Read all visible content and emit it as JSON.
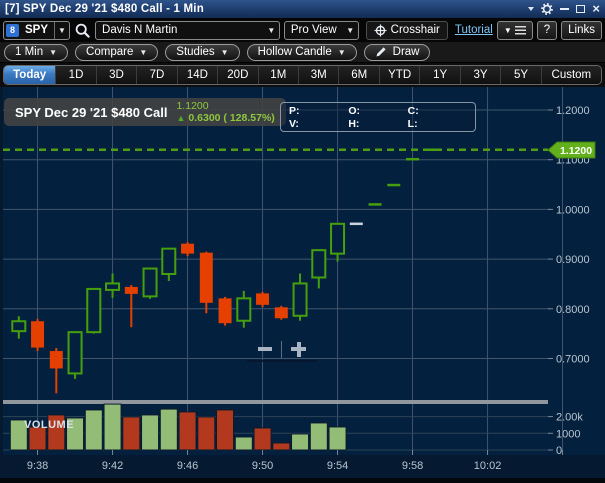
{
  "window": {
    "title": "[7] SPY Dec 29 '21 $480 Call - 1 Min"
  },
  "toolbar": {
    "symbol": "SPY",
    "link_group": "8",
    "account": "Davis N Martin",
    "view": "Pro View",
    "crosshair_label": "Crosshair",
    "tutorial_label": "Tutorial",
    "help_label": "?",
    "links_label": "Links"
  },
  "toolbar2": {
    "interval": "1 Min",
    "compare": "Compare",
    "studies": "Studies",
    "chart_style": "Hollow Candle",
    "draw": "Draw"
  },
  "range_tabs": [
    "Today",
    "1D",
    "3D",
    "7D",
    "14D",
    "20D",
    "1M",
    "3M",
    "6M",
    "YTD",
    "1Y",
    "3Y",
    "5Y",
    "Custom"
  ],
  "active_tab": "Today",
  "legend": {
    "symbol": "SPY Dec 29 '21 $480 Call",
    "last": "1.1200",
    "change": "0.6300 ( 128.57%)",
    "direction": "up"
  },
  "info_box": [
    "P:",
    "O:",
    "C:",
    "V:",
    "H:",
    "L:"
  ],
  "chart_data": {
    "type": "candlestick",
    "title": "SPY Dec 29 '21 $480 Call - 1 Min",
    "interval": "1 Min",
    "last_price": 1.12,
    "last_price_label": "1.1200",
    "volume_pane_label": "VOLUME",
    "price_axis": {
      "ticks": [
        {
          "label": "1.2000",
          "value": 1.2
        },
        {
          "label": "1.1000",
          "value": 1.1
        },
        {
          "label": "1.0000",
          "value": 1.0
        },
        {
          "label": "0.9000",
          "value": 0.9
        },
        {
          "label": "0.8000",
          "value": 0.8
        },
        {
          "label": "0.7000",
          "value": 0.7
        }
      ]
    },
    "volume_axis": {
      "ticks": [
        {
          "label": "2.00k",
          "value": 2000
        },
        {
          "label": "1000",
          "value": 1000
        },
        {
          "label": "0",
          "value": 0
        }
      ]
    },
    "time_axis": {
      "labels": [
        {
          "label": "9:38",
          "slot": 1
        },
        {
          "label": "9:42",
          "slot": 5
        },
        {
          "label": "9:46",
          "slot": 9
        },
        {
          "label": "9:50",
          "slot": 13
        },
        {
          "label": "9:54",
          "slot": 17
        },
        {
          "label": "9:58",
          "slot": 21
        },
        {
          "label": "10:02",
          "slot": 25
        }
      ]
    },
    "candles": [
      {
        "t": "9:37",
        "o": 0.755,
        "h": 0.785,
        "l": 0.74,
        "c": 0.775,
        "v": 1800,
        "tone": "up"
      },
      {
        "t": "9:38",
        "o": 0.775,
        "h": 0.78,
        "l": 0.715,
        "c": 0.722,
        "v": 1380,
        "tone": "down"
      },
      {
        "t": "9:39",
        "o": 0.715,
        "h": 0.721,
        "l": 0.63,
        "c": 0.68,
        "v": 2100,
        "tone": "down"
      },
      {
        "t": "9:40",
        "o": 0.67,
        "h": 0.753,
        "l": 0.659,
        "c": 0.753,
        "v": 1920,
        "tone": "up"
      },
      {
        "t": "9:41",
        "o": 0.753,
        "h": 0.841,
        "l": 0.75,
        "c": 0.84,
        "v": 2400,
        "tone": "up"
      },
      {
        "t": "9:42",
        "o": 0.838,
        "h": 0.871,
        "l": 0.822,
        "c": 0.851,
        "v": 2750,
        "tone": "up"
      },
      {
        "t": "9:43",
        "o": 0.844,
        "h": 0.848,
        "l": 0.763,
        "c": 0.83,
        "v": 1980,
        "tone": "down"
      },
      {
        "t": "9:44",
        "o": 0.825,
        "h": 0.881,
        "l": 0.82,
        "c": 0.881,
        "v": 2100,
        "tone": "up"
      },
      {
        "t": "9:45",
        "o": 0.87,
        "h": 0.921,
        "l": 0.856,
        "c": 0.921,
        "v": 2450,
        "tone": "up"
      },
      {
        "t": "9:46",
        "o": 0.931,
        "h": 0.934,
        "l": 0.906,
        "c": 0.911,
        "v": 2280,
        "tone": "down"
      },
      {
        "t": "9:47",
        "o": 0.913,
        "h": 0.915,
        "l": 0.791,
        "c": 0.812,
        "v": 1980,
        "tone": "down"
      },
      {
        "t": "9:48",
        "o": 0.821,
        "h": 0.824,
        "l": 0.766,
        "c": 0.771,
        "v": 2400,
        "tone": "down"
      },
      {
        "t": "9:49",
        "o": 0.776,
        "h": 0.836,
        "l": 0.762,
        "c": 0.821,
        "v": 780,
        "tone": "up"
      },
      {
        "t": "9:50",
        "o": 0.831,
        "h": 0.834,
        "l": 0.803,
        "c": 0.808,
        "v": 1320,
        "tone": "down"
      },
      {
        "t": "9:51",
        "o": 0.803,
        "h": 0.806,
        "l": 0.778,
        "c": 0.781,
        "v": 420,
        "tone": "down"
      },
      {
        "t": "9:52",
        "o": 0.786,
        "h": 0.871,
        "l": 0.776,
        "c": 0.851,
        "v": 960,
        "tone": "up"
      },
      {
        "t": "9:53",
        "o": 0.863,
        "h": 0.918,
        "l": 0.841,
        "c": 0.918,
        "v": 1620,
        "tone": "up"
      },
      {
        "t": "9:54",
        "o": 0.911,
        "h": 0.971,
        "l": 0.895,
        "c": 0.971,
        "v": 1380,
        "tone": "up"
      },
      {
        "t": "9:55",
        "o": 0.971,
        "h": 0.971,
        "l": 0.971,
        "c": 0.971,
        "v": 0,
        "tone": "flat"
      },
      {
        "t": "9:56",
        "o": 1.01,
        "h": 1.01,
        "l": 1.01,
        "c": 1.01,
        "v": 0,
        "tone": "up"
      },
      {
        "t": "9:57",
        "o": 1.049,
        "h": 1.049,
        "l": 1.049,
        "c": 1.049,
        "v": 0,
        "tone": "up"
      },
      {
        "t": "9:58",
        "o": 1.101,
        "h": 1.101,
        "l": 1.101,
        "c": 1.101,
        "v": 0,
        "tone": "up"
      },
      {
        "t": "9:59",
        "o": 1.12,
        "h": 1.12,
        "l": 1.12,
        "c": 1.12,
        "v": 0,
        "tone": "up"
      }
    ],
    "colors": {
      "bg": "#03203e",
      "axis_bg": "#051a31",
      "grid": "#41566c",
      "grid_faint": "#2e4459",
      "up": "#46a00d",
      "down": "#e54000",
      "flat": "#c9d3dc",
      "vol_up": "#93bd77",
      "vol_down": "#b2391d",
      "divider": "#90979d",
      "line": "#509f12",
      "bubble": "#62b01c",
      "bubble_border": "#3f7d12",
      "tick_text": "#b9c5cf",
      "tick_mark": "#7b8896"
    }
  }
}
